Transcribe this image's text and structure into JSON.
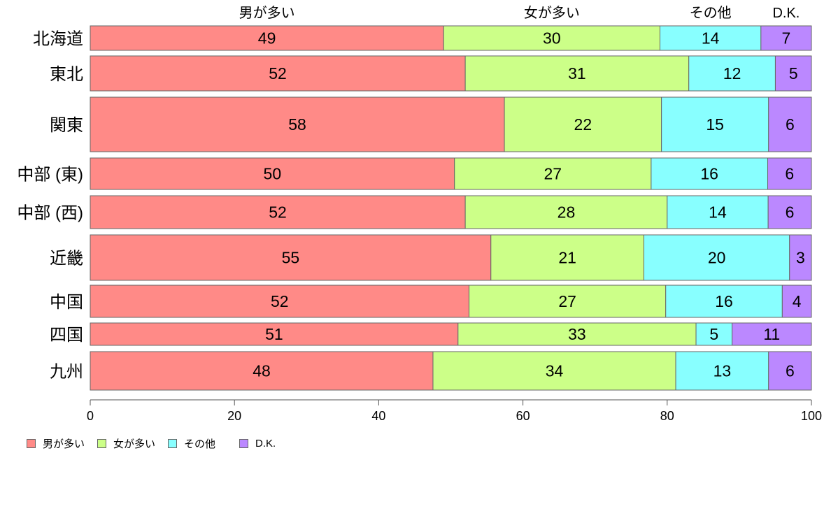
{
  "chart_data": {
    "type": "bar",
    "orientation": "horizontal",
    "stacked": true,
    "categories": [
      "北海道",
      "東北",
      "関東",
      "中部 (東)",
      "中部 (西)",
      "近畿",
      "中国",
      "四国",
      "九州"
    ],
    "series": [
      {
        "name": "男が多い",
        "color": "#ff8a87",
        "values": [
          49,
          52,
          58,
          50,
          52,
          55,
          52,
          51,
          48
        ]
      },
      {
        "name": "女が多い",
        "color": "#ccff88",
        "values": [
          30,
          31,
          22,
          27,
          28,
          21,
          27,
          33,
          34
        ]
      },
      {
        "name": "その他",
        "color": "#88ffff",
        "values": [
          14,
          12,
          15,
          16,
          14,
          20,
          16,
          5,
          13
        ]
      },
      {
        "name": "D.K.",
        "color": "#bb88ff",
        "values": [
          7,
          5,
          6,
          6,
          6,
          3,
          4,
          11,
          6
        ]
      }
    ],
    "xlim": [
      0,
      100
    ],
    "xticks": [
      0,
      20,
      40,
      60,
      80,
      100
    ],
    "legend": "bottom-left",
    "grid": false
  }
}
